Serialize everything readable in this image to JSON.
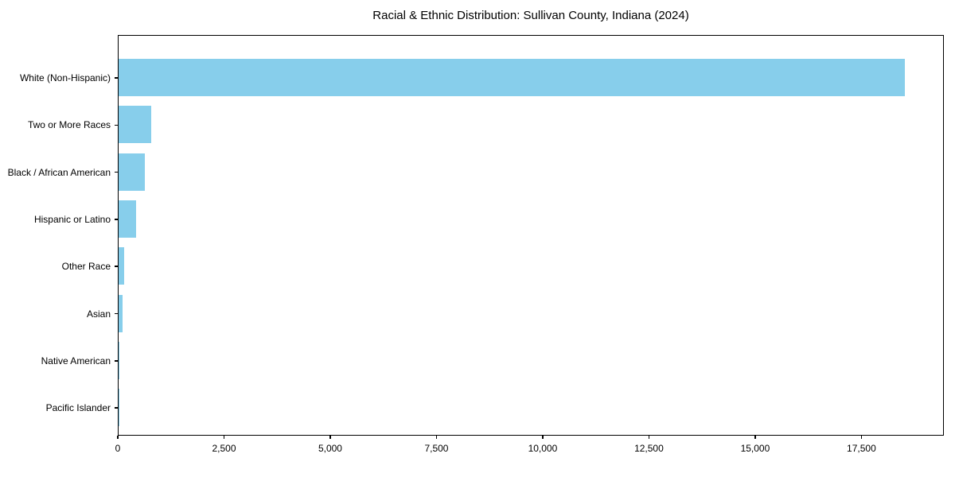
{
  "chart_data": {
    "type": "bar",
    "orientation": "horizontal",
    "title": "Racial & Ethnic Distribution: Sullivan County, Indiana (2024)",
    "categories": [
      "White (Non-Hispanic)",
      "Two or More Races",
      "Black / African American",
      "Hispanic or Latino",
      "Other Race",
      "Asian",
      "Native American",
      "Pacific Islander"
    ],
    "values": [
      18500,
      765,
      610,
      405,
      140,
      100,
      20,
      5
    ],
    "xlabel": "",
    "ylabel": "",
    "xlim": [
      0,
      19440
    ],
    "xticks": [
      0,
      2500,
      5000,
      7500,
      10000,
      12500,
      15000,
      17500
    ],
    "xtick_labels": [
      "0",
      "2,500",
      "5,000",
      "7,500",
      "10,000",
      "12,500",
      "15,000",
      "17,500"
    ],
    "bar_color": "#87CEEB",
    "background_color": "#FFFFFF",
    "text_color": "#000000",
    "grid": false,
    "legend": null
  }
}
